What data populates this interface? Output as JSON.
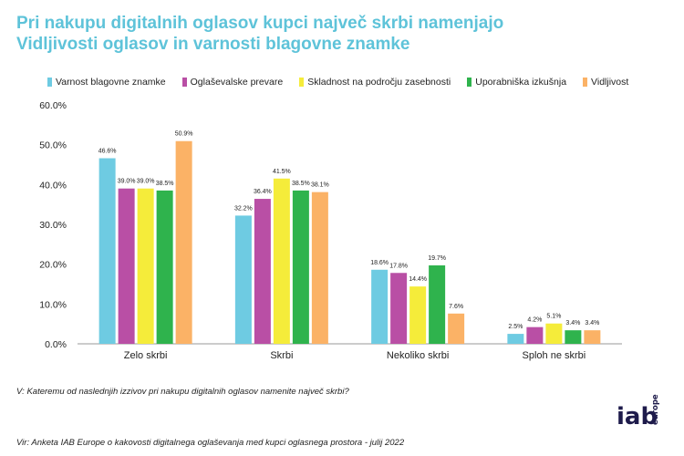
{
  "title_line1": "Pri nakupu digitalnih oglasov kupci največ skrbi namenjajo",
  "title_line2": "Vidljivosti oglasov in varnosti blagovne znamke",
  "note": "V: Kateremu od naslednjih izzivov pri nakupu digitalnih oglasov namenite največ skrbi?",
  "source": "Vir: Anketa IAB Europe o kakovosti digitalnega oglaševanja med kupci oglasnega prostora - julij 2022",
  "logo": {
    "main": "iab",
    "sub": "europe"
  },
  "chart_data": {
    "type": "bar",
    "categories": [
      "Zelo skrbi",
      "Skrbi",
      "Nekoliko skrbi",
      "Sploh ne skrbi"
    ],
    "series": [
      {
        "name": "Varnost blagovne znamke",
        "color": "#6ecbe2",
        "values": [
          46.6,
          32.2,
          18.6,
          2.5
        ]
      },
      {
        "name": "Oglaševalske prevare",
        "color": "#b94fa5",
        "values": [
          39.0,
          36.4,
          17.8,
          4.2
        ]
      },
      {
        "name": "Skladnost na področju zasebnosti",
        "color": "#f5ec3a",
        "values": [
          39.0,
          41.5,
          14.4,
          5.1
        ]
      },
      {
        "name": "Uporabniška izkušnja",
        "color": "#2fb34d",
        "values": [
          38.5,
          38.5,
          19.7,
          3.4
        ]
      },
      {
        "name": "Vidljivost",
        "color": "#fbb266",
        "values": [
          50.9,
          38.1,
          7.6,
          3.4
        ]
      }
    ],
    "yticks": [
      "0.0%",
      "10.0%",
      "20.0%",
      "30.0%",
      "40.0%",
      "50.0%",
      "60.0%"
    ],
    "ylim": [
      0,
      60
    ],
    "unit": "%",
    "legend": "top"
  }
}
